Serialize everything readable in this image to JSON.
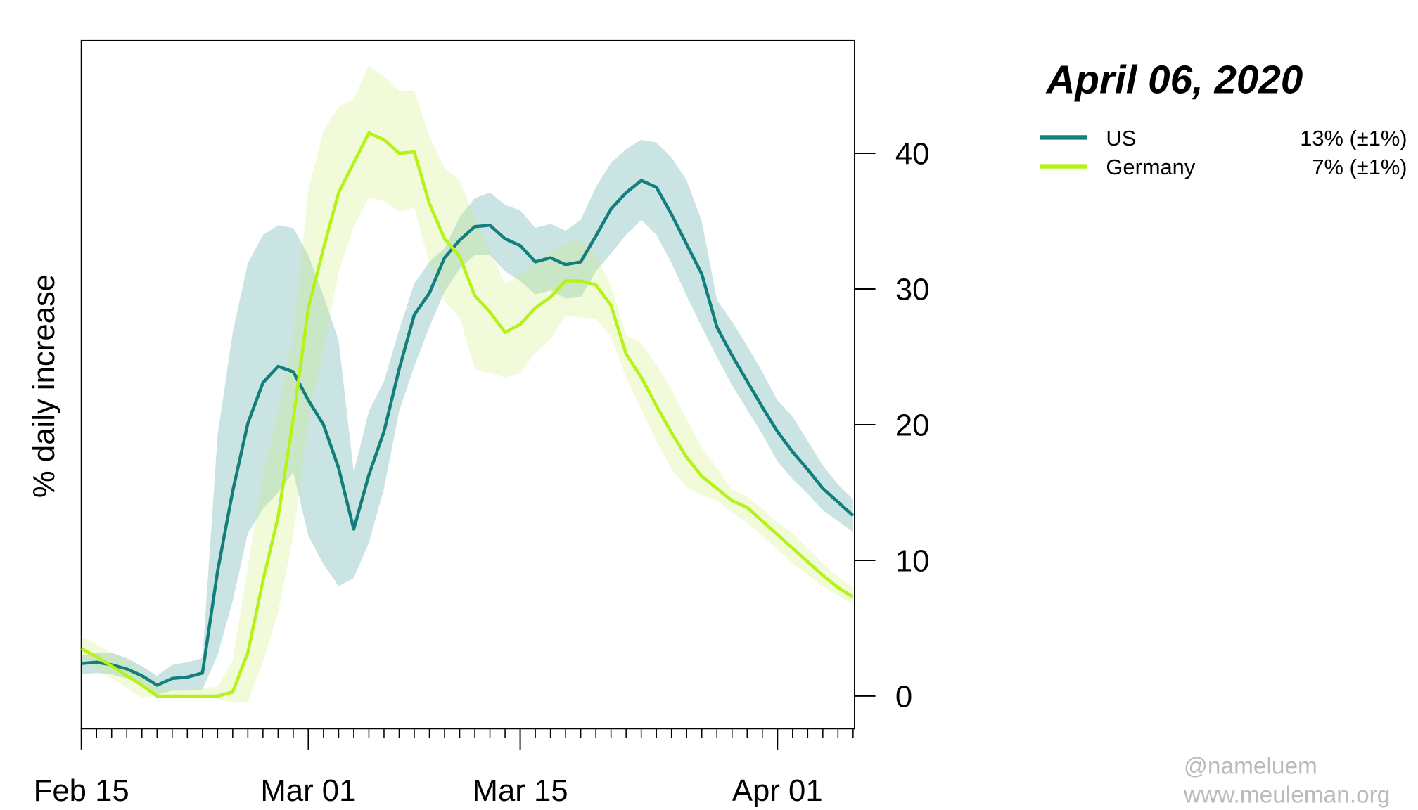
{
  "chart_data": {
    "type": "line",
    "title": "April 06, 2020",
    "ylabel": "% daily increase",
    "annotations": [
      "@nameluem",
      "www.meuleman.org"
    ],
    "x": [
      "Feb 15",
      "Feb 16",
      "Feb 17",
      "Feb 18",
      "Feb 19",
      "Feb 20",
      "Feb 21",
      "Feb 22",
      "Feb 23",
      "Feb 24",
      "Feb 25",
      "Feb 26",
      "Feb 27",
      "Feb 28",
      "Feb 29",
      "Mar 01",
      "Mar 02",
      "Mar 03",
      "Mar 04",
      "Mar 05",
      "Mar 06",
      "Mar 07",
      "Mar 08",
      "Mar 09",
      "Mar 10",
      "Mar 11",
      "Mar 12",
      "Mar 13",
      "Mar 14",
      "Mar 15",
      "Mar 16",
      "Mar 17",
      "Mar 18",
      "Mar 19",
      "Mar 20",
      "Mar 21",
      "Mar 22",
      "Mar 23",
      "Mar 24",
      "Mar 25",
      "Mar 26",
      "Mar 27",
      "Mar 28",
      "Mar 29",
      "Mar 30",
      "Mar 31",
      "Apr 01",
      "Apr 02",
      "Apr 03",
      "Apr 04",
      "Apr 05",
      "Apr 06"
    ],
    "xticks": [
      "Feb 15",
      "Mar 01",
      "Mar 15",
      "Apr 01"
    ],
    "ylim": [
      -2.4,
      48.3
    ],
    "yticks": [
      0,
      10,
      20,
      30,
      40
    ],
    "series": [
      {
        "name": "US",
        "label": "13% (±1%)",
        "color": "#137f7d",
        "band_color": "#2b9493",
        "values": [
          2.4,
          2.5,
          2.3,
          2.0,
          1.5,
          0.8,
          1.3,
          1.4,
          1.7,
          9.2,
          15.1,
          20.1,
          23.1,
          24.3,
          23.9,
          21.8,
          20.0,
          16.8,
          12.3,
          16.3,
          19.5,
          24.1,
          28.1,
          29.7,
          32.3,
          33.6,
          34.6,
          34.7,
          33.7,
          33.2,
          32.0,
          32.3,
          31.8,
          32.0,
          33.9,
          35.9,
          37.1,
          38.0,
          37.5,
          35.5,
          33.3,
          31.1,
          27.2,
          25.1,
          23.2,
          21.3,
          19.5,
          18.0,
          16.7,
          15.3,
          14.3,
          13.3
        ],
        "upper": [
          3.0,
          3.2,
          3.2,
          2.8,
          2.2,
          1.5,
          2.3,
          2.5,
          2.8,
          19.2,
          26.8,
          31.9,
          34.0,
          34.7,
          34.5,
          32.5,
          29.5,
          26.2,
          16.5,
          21.0,
          23.2,
          27.0,
          30.4,
          32.0,
          33.0,
          35.3,
          36.7,
          37.1,
          36.2,
          35.8,
          34.5,
          34.8,
          34.3,
          35.1,
          37.5,
          39.3,
          40.3,
          41.0,
          40.8,
          39.7,
          38.0,
          35.0,
          29.2,
          27.6,
          25.8,
          23.9,
          21.8,
          20.6,
          18.8,
          17.0,
          15.6,
          14.5
        ],
        "lower": [
          1.6,
          1.7,
          1.6,
          1.3,
          0.8,
          0.1,
          0.4,
          0.4,
          0.5,
          3.0,
          7.0,
          12.0,
          13.8,
          15.0,
          16.5,
          11.8,
          9.7,
          8.1,
          8.7,
          11.3,
          15.3,
          21.0,
          24.3,
          27.2,
          29.8,
          31.5,
          32.5,
          32.5,
          31.3,
          30.6,
          29.6,
          29.9,
          29.3,
          29.4,
          31.3,
          32.6,
          34.0,
          35.1,
          34.0,
          31.9,
          29.5,
          27.2,
          25.0,
          22.9,
          21.1,
          19.3,
          17.3,
          16.0,
          14.9,
          13.7,
          12.9,
          12.1
        ]
      },
      {
        "name": "Germany",
        "label": "7% (±1%)",
        "color": "#b5f21a",
        "band_color": "#c6f06a",
        "values": [
          3.5,
          2.9,
          2.2,
          1.5,
          0.8,
          0.0,
          0.0,
          0.0,
          0.0,
          0.0,
          0.3,
          3.2,
          8.5,
          13.2,
          20.4,
          28.6,
          33.0,
          37.1,
          39.3,
          41.5,
          41.0,
          40.0,
          40.1,
          36.3,
          33.7,
          32.4,
          29.5,
          28.3,
          26.8,
          27.4,
          28.6,
          29.4,
          30.6,
          30.6,
          30.3,
          28.8,
          25.2,
          23.5,
          21.4,
          19.4,
          17.6,
          16.2,
          15.3,
          14.4,
          13.9,
          12.9,
          11.9,
          10.9,
          9.9,
          8.9,
          8.0,
          7.3
        ],
        "upper": [
          4.4,
          3.8,
          3.2,
          2.6,
          1.7,
          0.8,
          0.5,
          0.5,
          0.6,
          0.7,
          2.6,
          9.5,
          16.3,
          21.0,
          26.5,
          37.3,
          41.7,
          43.4,
          44.0,
          46.5,
          45.7,
          44.6,
          44.6,
          41.3,
          38.9,
          38.0,
          35.2,
          32.8,
          30.4,
          31.0,
          31.9,
          32.7,
          33.4,
          33.6,
          32.5,
          30.2,
          26.6,
          26.0,
          24.4,
          22.6,
          20.4,
          18.3,
          16.8,
          15.2,
          14.7,
          13.8,
          12.8,
          12.0,
          10.9,
          9.8,
          8.8,
          8.0
        ],
        "lower": [
          2.6,
          2.0,
          1.3,
          0.6,
          -0.1,
          0.0,
          0.0,
          0.0,
          0.0,
          -0.2,
          -0.5,
          -0.4,
          2.5,
          6.2,
          11.8,
          20.3,
          25.6,
          31.2,
          34.6,
          36.7,
          36.5,
          35.7,
          36.0,
          31.9,
          29.1,
          27.9,
          24.1,
          23.8,
          23.5,
          23.8,
          25.3,
          26.3,
          28.0,
          27.9,
          27.8,
          26.5,
          23.5,
          21.1,
          18.8,
          16.7,
          15.4,
          14.8,
          14.4,
          13.5,
          12.8,
          11.8,
          10.8,
          9.8,
          8.9,
          8.1,
          7.4,
          6.7
        ]
      }
    ]
  }
}
